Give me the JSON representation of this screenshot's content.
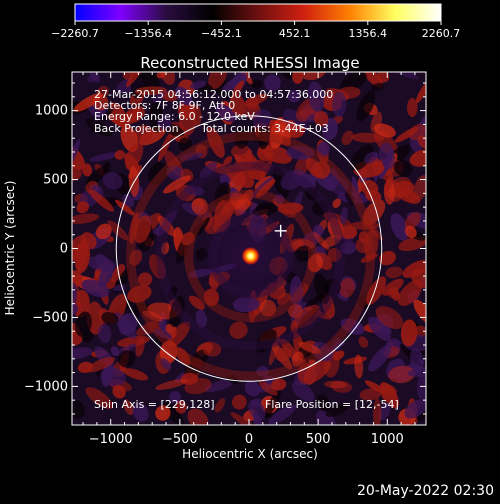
{
  "colorbar": {
    "ticks": [
      "-2260.7",
      "-1356.4",
      "-452.1",
      "452.1",
      "1356.4",
      "2260.7"
    ],
    "range": [
      -2260.7,
      2260.7
    ],
    "colors": [
      "#0000ff",
      "#7f00ff",
      "#2a0d3f",
      "#000000",
      "#6e1010",
      "#d02010",
      "#ff8000",
      "#ffff60",
      "#ffffff"
    ]
  },
  "title": "Reconstructed RHESSI Image",
  "info": {
    "line1": "27-Mar-2015 04:56:12.000 to 04:57:36.000",
    "line2": "Detectors: 7F 8F 9F, Att 0",
    "line3": "Energy Range: 6.0 - 12.0 keV",
    "line4_left": "Back Projection",
    "line4_right": "Total counts: 3.44E+03",
    "spin_axis": "Spin Axis = [229,128]",
    "flare_position": "Flare Position = [12,-54]"
  },
  "footer_date": "20-May-2022 02:30",
  "chart_data": {
    "type": "heatmap",
    "title": "Reconstructed RHESSI Image",
    "xlabel": "Heliocentric X (arcsec)",
    "ylabel": "Heliocentric Y (arcsec)",
    "xlim": [
      -1280,
      1280
    ],
    "ylim": [
      -1280,
      1280
    ],
    "xticks": [
      -1000,
      -500,
      0,
      500,
      1000
    ],
    "yticks": [
      -1000,
      -500,
      0,
      500,
      1000
    ],
    "xtick_labels": [
      "−1000",
      "−500",
      "0",
      "500",
      "1000"
    ],
    "ytick_labels": [
      "−1000",
      "−500",
      "0",
      "500",
      "1000"
    ],
    "value_range": [
      -2260.7,
      2260.7
    ],
    "solar_limb_radius": 960,
    "flare_position": [
      12,
      -54
    ],
    "cross_marker": [
      229,
      128
    ],
    "peak_value": 2260.7
  }
}
